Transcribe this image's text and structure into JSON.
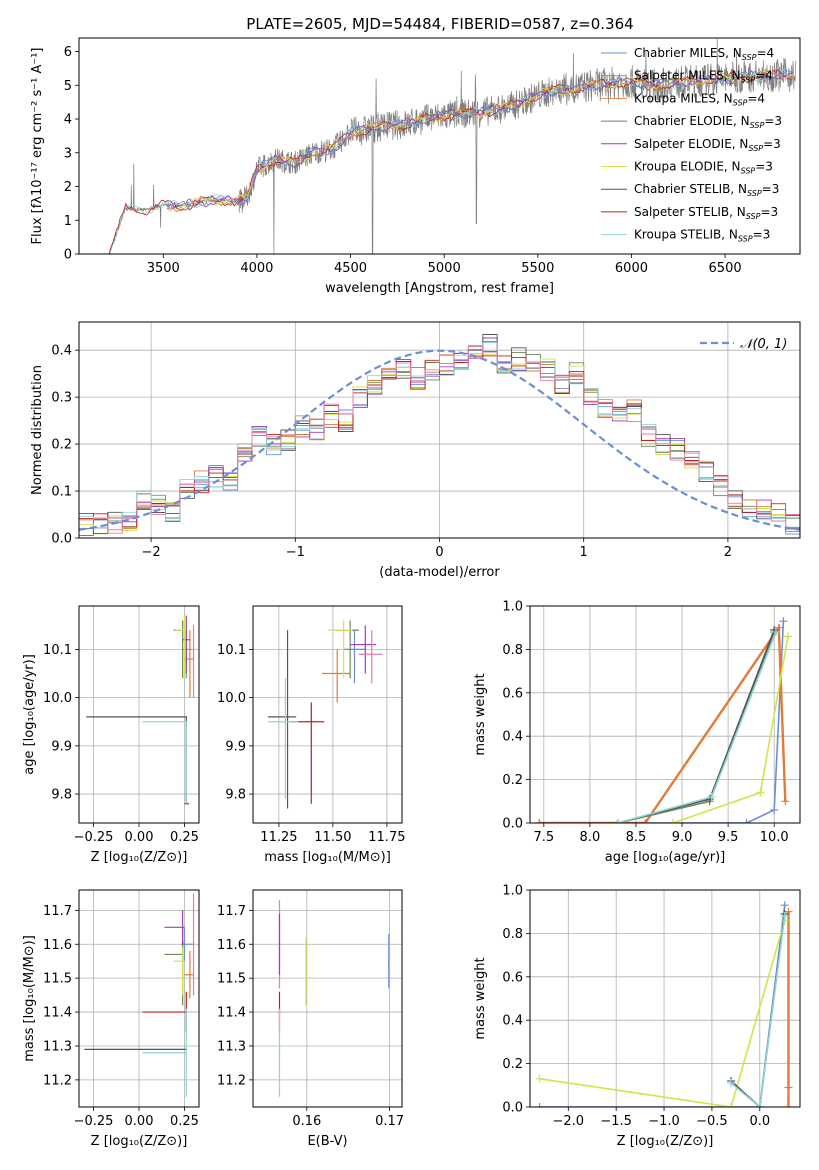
{
  "figure_title": "PLATE=2605, MJD=54484, FIBERID=0587, z=0.364",
  "colors": {
    "c0": "#6b8fd6",
    "c1": "#e07b3a",
    "c2": "#e8873f",
    "c3": "#6a8a5a",
    "c4": "#9b3fb5",
    "c5": "#d4e34a",
    "c6": "#555555",
    "c7": "#c0201a",
    "c8": "#8fd3d8",
    "pink": "#e87aa8",
    "grid": "#b0b0b0"
  },
  "legend_entries": [
    {
      "main": "Chabrier MILES, N",
      "sub": "SSP",
      "tail": "=4"
    },
    {
      "main": "Salpeter MILES, N",
      "sub": "SSP",
      "tail": "=4"
    },
    {
      "main": "Kroupa MILES, N",
      "sub": "SSP",
      "tail": "=4"
    },
    {
      "main": "Chabrier ELODIE, N",
      "sub": "SSP",
      "tail": "=3"
    },
    {
      "main": "Salpeter ELODIE, N",
      "sub": "SSP",
      "tail": "=3"
    },
    {
      "main": "Kroupa ELODIE, N",
      "sub": "SSP",
      "tail": "=3"
    },
    {
      "main": "Chabrier STELIB, N",
      "sub": "SSP",
      "tail": "=3"
    },
    {
      "main": "Salpeter STELIB, N",
      "sub": "SSP",
      "tail": "=3"
    },
    {
      "main": "Kroupa STELIB, N",
      "sub": "SSP",
      "tail": "=3"
    }
  ],
  "chart_data": [
    {
      "type": "line",
      "panel": "spectrum",
      "xlabel": "wavelength [Angstrom, rest frame]",
      "ylabel": "Flux [fλ10⁻¹⁷ erg cm⁻² s⁻¹ A⁻¹]",
      "xlim": [
        3050,
        6900
      ],
      "ylim": [
        0,
        6.4
      ],
      "xticks": [
        "3500",
        "4000",
        "4500",
        "5000",
        "5500",
        "6000",
        "6500"
      ],
      "xtick_values": [
        3500,
        4000,
        4500,
        5000,
        5500,
        6000,
        6500
      ],
      "yticks": [
        "0",
        "1",
        "2",
        "3",
        "4",
        "5",
        "6"
      ],
      "ytick_values": [
        0,
        1,
        2,
        3,
        4,
        5,
        6
      ],
      "grid": false,
      "legend": "top-right",
      "data_x": [
        3210,
        3300,
        3400,
        3500,
        3600,
        3700,
        3800,
        3900,
        3950,
        4000,
        4100,
        4200,
        4300,
        4400,
        4500,
        4600,
        4700,
        4800,
        4900,
        5000,
        5100,
        5200,
        5300,
        5400,
        5500,
        5600,
        5700,
        5800,
        5900,
        6000,
        6100,
        6200,
        6300,
        6400,
        6500,
        6600,
        6700,
        6800
      ],
      "data_y": [
        0.0,
        1.35,
        1.3,
        1.45,
        1.4,
        1.55,
        1.6,
        1.55,
        1.7,
        2.5,
        2.8,
        2.7,
        3.0,
        3.1,
        3.6,
        3.7,
        3.8,
        3.85,
        4.0,
        4.1,
        4.15,
        4.2,
        4.3,
        4.45,
        4.7,
        4.85,
        4.9,
        5.0,
        5.05,
        5.1,
        5.0,
        5.05,
        5.1,
        5.15,
        5.2,
        5.25,
        5.3,
        5.3
      ]
    },
    {
      "type": "line",
      "panel": "residual-distribution",
      "xlabel": "(data-model)/error",
      "ylabel": "Normed distribution",
      "xlim": [
        -2.5,
        2.5
      ],
      "ylim": [
        0,
        0.46
      ],
      "xticks": [
        "−2",
        "−1",
        "0",
        "1",
        "2"
      ],
      "xtick_values": [
        -2,
        -1,
        0,
        1,
        2
      ],
      "yticks": [
        "0.0",
        "0.1",
        "0.2",
        "0.3",
        "0.4"
      ],
      "ytick_values": [
        0,
        0.1,
        0.2,
        0.3,
        0.4
      ],
      "grid": true,
      "legend": "top-right",
      "legend_label": "𝒩(0, 1)",
      "bin_edges_from": -2.5,
      "bin_width": 0.1,
      "hist_values": [
        0.03,
        0.03,
        0.03,
        0.04,
        0.08,
        0.07,
        0.06,
        0.1,
        0.12,
        0.13,
        0.12,
        0.18,
        0.22,
        0.2,
        0.21,
        0.24,
        0.23,
        0.26,
        0.25,
        0.3,
        0.33,
        0.35,
        0.36,
        0.34,
        0.36,
        0.37,
        0.38,
        0.39,
        0.41,
        0.37,
        0.38,
        0.37,
        0.36,
        0.33,
        0.35,
        0.3,
        0.28,
        0.26,
        0.27,
        0.22,
        0.2,
        0.19,
        0.17,
        0.14,
        0.11,
        0.08,
        0.07,
        0.06,
        0.05,
        0.03
      ]
    },
    {
      "type": "scatter",
      "panel": "age-vs-Z",
      "xlabel": "Z [log₁₀(Z/Z⊙)]",
      "ylabel": "age  [log₁₀(age/yr)]",
      "xlim": [
        -0.33,
        0.33
      ],
      "ylim": [
        9.74,
        10.19
      ],
      "xticks": [
        "−0.25",
        "0.00",
        "0.25"
      ],
      "xtick_values": [
        -0.25,
        0,
        0.25
      ],
      "yticks": [
        "9.8",
        "9.9",
        "10.0",
        "10.1"
      ],
      "ytick_values": [
        9.8,
        9.9,
        10.0,
        10.1
      ],
      "grid": true,
      "points": [
        {
          "x": 0.26,
          "y": 10.1,
          "xerr": [
            0.02,
            0.03
          ],
          "yerr": [
            0.06,
            0.04
          ],
          "c": "c0"
        },
        {
          "x": 0.28,
          "y": 10.08,
          "xerr": [
            0.03,
            0.02
          ],
          "yerr": [
            0.08,
            0.06
          ],
          "c": "c1"
        },
        {
          "x": 0.24,
          "y": 10.14,
          "xerr": [
            0.05,
            0.0
          ],
          "yerr": [
            0.1,
            0.02
          ],
          "c": "c3"
        },
        {
          "x": 0.26,
          "y": 10.12,
          "xerr": [
            0.02,
            0.02
          ],
          "yerr": [
            0.07,
            0.05
          ],
          "c": "c4"
        },
        {
          "x": 0.25,
          "y": 10.14,
          "xerr": [
            0.05,
            0.01
          ],
          "yerr": [
            0.1,
            0.03
          ],
          "c": "c5"
        },
        {
          "x": 0.26,
          "y": 9.96,
          "xerr": [
            0.55,
            0.0
          ],
          "yerr": [
            0.18,
            0.0
          ],
          "c": "c6"
        },
        {
          "x": 0.27,
          "y": 9.78,
          "xerr": [
            0.02,
            0.0
          ],
          "yerr": [
            0.0,
            0.0
          ],
          "c": "c7"
        },
        {
          "x": 0.26,
          "y": 9.95,
          "xerr": [
            0.24,
            0.0
          ],
          "yerr": [
            0.17,
            0.0
          ],
          "c": "c8"
        },
        {
          "x": 0.3,
          "y": 10.1,
          "xerr": [
            0.0,
            0.0
          ],
          "yerr": [
            0.1,
            0.05
          ],
          "c": "pink"
        }
      ]
    },
    {
      "type": "scatter",
      "panel": "age-vs-mass",
      "xlabel": "mass [log₁₀(M/M⊙)]",
      "ylabel": "",
      "xlim": [
        11.13,
        11.82
      ],
      "ylim": [
        9.74,
        10.19
      ],
      "xticks": [
        "11.25",
        "11.50",
        "11.75"
      ],
      "xtick_values": [
        11.25,
        11.5,
        11.75
      ],
      "yticks": [
        "9.8",
        "9.9",
        "10.0",
        "10.1"
      ],
      "ytick_values": [
        9.8,
        9.9,
        10.0,
        10.1
      ],
      "grid": true,
      "points": [
        {
          "x": 11.6,
          "y": 10.1,
          "xerr": [
            0.05,
            0.05
          ],
          "yerr": [
            0.07,
            0.04
          ],
          "c": "c0"
        },
        {
          "x": 11.52,
          "y": 10.05,
          "xerr": [
            0.07,
            0.06
          ],
          "yerr": [
            0.06,
            0.05
          ],
          "c": "c1"
        },
        {
          "x": 11.58,
          "y": 10.14,
          "xerr": [
            0.07,
            0.04
          ],
          "yerr": [
            0.1,
            0.02
          ],
          "c": "c3"
        },
        {
          "x": 11.65,
          "y": 10.11,
          "xerr": [
            0.07,
            0.05
          ],
          "yerr": [
            0.06,
            0.04
          ],
          "c": "c4"
        },
        {
          "x": 11.55,
          "y": 10.14,
          "xerr": [
            0.07,
            0.04
          ],
          "yerr": [
            0.1,
            0.02
          ],
          "c": "c5"
        },
        {
          "x": 11.29,
          "y": 9.96,
          "xerr": [
            0.09,
            0.04
          ],
          "yerr": [
            0.19,
            0.18
          ],
          "c": "c6"
        },
        {
          "x": 11.4,
          "y": 9.95,
          "xerr": [
            0.1,
            0.06
          ],
          "yerr": [
            0.17,
            0.04
          ],
          "c": "c7"
        },
        {
          "x": 11.28,
          "y": 9.95,
          "xerr": [
            0.08,
            0.06
          ],
          "yerr": [
            0.16,
            0.09
          ],
          "c": "c8"
        },
        {
          "x": 11.68,
          "y": 10.09,
          "xerr": [
            0.06,
            0.05
          ],
          "yerr": [
            0.06,
            0.05
          ],
          "c": "pink"
        }
      ]
    },
    {
      "type": "line",
      "panel": "mass-weight-vs-age",
      "xlabel": "age  [log₁₀(age/yr)]",
      "ylabel": "mass weight",
      "xlim": [
        7.35,
        10.28
      ],
      "ylim": [
        0,
        1.0
      ],
      "xticks": [
        "7.5",
        "8.0",
        "8.5",
        "9.0",
        "9.5",
        "10.0"
      ],
      "xtick_values": [
        7.5,
        8.0,
        8.5,
        9.0,
        9.5,
        10.0
      ],
      "yticks": [
        "0.0",
        "0.2",
        "0.4",
        "0.6",
        "0.8",
        "1.0"
      ],
      "ytick_values": [
        0,
        0.2,
        0.4,
        0.6,
        0.8,
        1.0
      ],
      "grid": true,
      "series": [
        {
          "c": "c0",
          "x": [
            7.45,
            9.7,
            10.0,
            10.1
          ],
          "y": [
            0.0,
            0.0,
            0.06,
            0.93
          ]
        },
        {
          "c": "c1",
          "x": [
            7.45,
            8.6,
            10.05,
            10.12
          ],
          "y": [
            0.0,
            0.0,
            0.9,
            0.1
          ]
        },
        {
          "c": "c3",
          "x": [
            8.3,
            9.3,
            10.0
          ],
          "y": [
            0.0,
            0.1,
            0.88
          ]
        },
        {
          "c": "c5",
          "x": [
            8.9,
            9.85,
            10.15
          ],
          "y": [
            0.0,
            0.14,
            0.86
          ]
        },
        {
          "c": "c6",
          "x": [
            8.3,
            9.3,
            10.0
          ],
          "y": [
            0.0,
            0.11,
            0.89
          ]
        },
        {
          "c": "c8",
          "x": [
            8.3,
            9.32,
            10.02
          ],
          "y": [
            0.0,
            0.12,
            0.88
          ]
        }
      ]
    },
    {
      "type": "scatter",
      "panel": "mass-vs-Z",
      "xlabel": "Z [log₁₀(Z/Z⊙)]",
      "ylabel": "mass [log₁₀(M/M⊙)]",
      "xlim": [
        -0.33,
        0.33
      ],
      "ylim": [
        11.12,
        11.76
      ],
      "xticks": [
        "−0.25",
        "0.00",
        "0.25"
      ],
      "xtick_values": [
        -0.25,
        0,
        0.25
      ],
      "yticks": [
        "11.2",
        "11.3",
        "11.4",
        "11.5",
        "11.6",
        "11.7"
      ],
      "ytick_values": [
        11.2,
        11.3,
        11.4,
        11.5,
        11.6,
        11.7
      ],
      "grid": true,
      "points": [
        {
          "x": 0.25,
          "y": 11.6,
          "xerr": [
            0.02,
            0.05
          ],
          "yerr": [
            0.05,
            0.05
          ],
          "c": "c0"
        },
        {
          "x": 0.28,
          "y": 11.51,
          "xerr": [
            0.03,
            0.02
          ],
          "yerr": [
            0.07,
            0.07
          ],
          "c": "c1"
        },
        {
          "x": 0.24,
          "y": 11.57,
          "xerr": [
            0.1,
            0.0
          ],
          "yerr": [
            0.15,
            0.04
          ],
          "c": "c3"
        },
        {
          "x": 0.24,
          "y": 11.65,
          "xerr": [
            0.1,
            0.01
          ],
          "yerr": [
            0.05,
            0.05
          ],
          "c": "c4"
        },
        {
          "x": 0.24,
          "y": 11.55,
          "xerr": [
            0.05,
            0.01
          ],
          "yerr": [
            0.1,
            0.04
          ],
          "c": "c5"
        },
        {
          "x": 0.26,
          "y": 11.29,
          "xerr": [
            0.56,
            0.0
          ],
          "yerr": [
            0.0,
            0.0
          ],
          "c": "c6"
        },
        {
          "x": 0.26,
          "y": 11.4,
          "xerr": [
            0.24,
            0.0
          ],
          "yerr": [
            0.06,
            0.06
          ],
          "c": "c7"
        },
        {
          "x": 0.26,
          "y": 11.28,
          "xerr": [
            0.24,
            0.0
          ],
          "yerr": [
            0.13,
            0.13
          ],
          "c": "c8"
        },
        {
          "x": 0.3,
          "y": 11.6,
          "xerr": [
            0.0,
            0.0
          ],
          "yerr": [
            0.15,
            0.15
          ],
          "c": "pink"
        }
      ]
    },
    {
      "type": "scatter",
      "panel": "mass-vs-EBV",
      "xlabel": "E(B-V)",
      "ylabel": "",
      "xlim": [
        0.1535,
        0.1715
      ],
      "ylim": [
        11.12,
        11.76
      ],
      "xticks": [
        "0.16",
        "0.17"
      ],
      "xtick_values": [
        0.16,
        0.17
      ],
      "yticks": [
        "11.2",
        "11.3",
        "11.4",
        "11.5",
        "11.6",
        "11.7"
      ],
      "ytick_values": [
        11.2,
        11.3,
        11.4,
        11.5,
        11.6,
        11.7
      ],
      "grid": true,
      "points": [
        {
          "x": 0.1699,
          "y": 11.55,
          "xerr": [
            0,
            0
          ],
          "yerr": [
            0.08,
            0.08
          ],
          "c": "c0"
        },
        {
          "x": 0.1567,
          "y": 11.6,
          "xerr": [
            0,
            0
          ],
          "yerr": [
            0.13,
            0.13
          ],
          "c": "pink"
        },
        {
          "x": 0.1567,
          "y": 11.6,
          "xerr": [
            0,
            0
          ],
          "yerr": [
            0.09,
            0.09
          ],
          "c": "c4"
        },
        {
          "x": 0.1599,
          "y": 11.52,
          "xerr": [
            0,
            0
          ],
          "yerr": [
            0.1,
            0.1
          ],
          "c": "c5"
        },
        {
          "x": 0.1567,
          "y": 11.4,
          "xerr": [
            0,
            0
          ],
          "yerr": [
            0.06,
            0.06
          ],
          "c": "c7"
        },
        {
          "x": 0.1567,
          "y": 11.28,
          "xerr": [
            0,
            0
          ],
          "yerr": [
            0.13,
            0.13
          ],
          "c": "c8"
        }
      ]
    },
    {
      "type": "line",
      "panel": "mass-weight-vs-Z",
      "xlabel": "Z [log₁₀(Z/Z⊙)]",
      "ylabel": "mass weight",
      "xlim": [
        -2.4,
        0.42
      ],
      "ylim": [
        0,
        1.0
      ],
      "xticks": [
        "−2.0",
        "−1.5",
        "−1.0",
        "−0.5",
        "0.0"
      ],
      "xtick_values": [
        -2.0,
        -1.5,
        -1.0,
        -0.5,
        0.0
      ],
      "yticks": [
        "0.0",
        "0.2",
        "0.4",
        "0.6",
        "0.8",
        "1.0"
      ],
      "ytick_values": [
        0,
        0.2,
        0.4,
        0.6,
        0.8,
        1.0
      ],
      "grid": true,
      "series": [
        {
          "c": "c0",
          "x": [
            -2.3,
            0.0,
            0.26
          ],
          "y": [
            0.0,
            0.0,
            0.93
          ]
        },
        {
          "c": "c1",
          "x": [
            0.3,
            0.3,
            0.3
          ],
          "y": [
            0.0,
            0.09,
            0.9
          ]
        },
        {
          "c": "c5",
          "x": [
            -2.3,
            -0.3,
            0.26
          ],
          "y": [
            0.13,
            0.0,
            0.86
          ]
        },
        {
          "c": "c6",
          "x": [
            -0.3,
            0.0,
            0.26
          ],
          "y": [
            0.12,
            0.0,
            0.89
          ]
        },
        {
          "c": "c8",
          "x": [
            -0.3,
            0.0,
            0.26
          ],
          "y": [
            0.11,
            0.0,
            0.88
          ]
        }
      ]
    }
  ]
}
